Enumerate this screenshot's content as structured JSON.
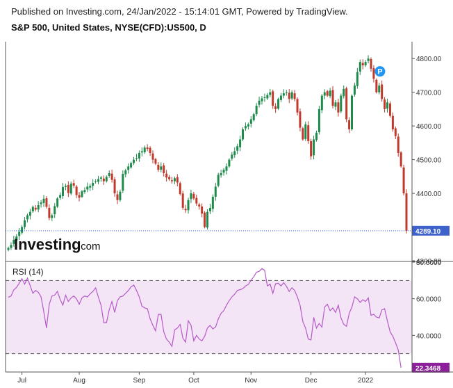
{
  "header": {
    "published": "Published on Investing.com, 24/Jan/2022 - 15:14:01 GMT, Powered by TradingView.",
    "symbol": "S&P 500, United States, NYSE(CFD):US500, D"
  },
  "logo": {
    "main": "Investing",
    "suffix": ".com"
  },
  "colors": {
    "up": "#26a69a",
    "up_fill": "#1e8a4c",
    "down": "#c0392b",
    "price_line": "#2962ff",
    "price_badge": "#3d62c9",
    "rsi_line": "#b659c9",
    "rsi_band": "#f3e5f5",
    "rsi_badge": "#8e1f9b",
    "marker": "#2196f3"
  },
  "chart_data": [
    {
      "type": "candlestick",
      "title": "S&P 500, United States, NYSE(CFD):US500, D",
      "ylim": [
        4200,
        4850
      ],
      "yticks": [
        "4800.00",
        "4700.00",
        "4600.00",
        "4500.00",
        "4400.00",
        "4200.00"
      ],
      "ytick_values": [
        4800,
        4700,
        4600,
        4500,
        4400,
        4200
      ],
      "xticks": [
        "Jul",
        "Aug",
        "Sep",
        "Oct",
        "Nov",
        "Dec",
        "2022"
      ],
      "xtick_indices": [
        5,
        26,
        48,
        68,
        89,
        111,
        131
      ],
      "current_price": "4289.10",
      "current_price_value": 4289.1,
      "marker_label": "P",
      "marker_index": 134,
      "closes": [
        4238,
        4247,
        4262,
        4272,
        4286,
        4300,
        4320,
        4335,
        4345,
        4360,
        4352,
        4365,
        4373,
        4384,
        4360,
        4327,
        4335,
        4362,
        4385,
        4395,
        4419,
        4422,
        4401,
        4429,
        4423,
        4395,
        4387,
        4406,
        4410,
        4420,
        4422,
        4431,
        4436,
        4442,
        4447,
        4436,
        4449,
        4460,
        4440,
        4400,
        4380,
        4405,
        4458,
        4468,
        4480,
        4490,
        4500,
        4505,
        4520,
        4525,
        4536,
        4532,
        4520,
        4500,
        4488,
        4470,
        4480,
        4460,
        4447,
        4442,
        4436,
        4445,
        4432,
        4398,
        4357,
        4350,
        4380,
        4400,
        4385,
        4370,
        4361,
        4340,
        4300,
        4345,
        4357,
        4390,
        4420,
        4455,
        4460,
        4470,
        4480,
        4500,
        4515,
        4525,
        4540,
        4560,
        4590,
        4600,
        4605,
        4620,
        4635,
        4660,
        4675,
        4682,
        4685,
        4692,
        4700,
        4660,
        4650,
        4680,
        4690,
        4697,
        4700,
        4680,
        4700,
        4680,
        4640,
        4595,
        4560,
        4605,
        4555,
        4510,
        4560,
        4580,
        4650,
        4690,
        4700,
        4690,
        4705,
        4660,
        4670,
        4640,
        4690,
        4710,
        4620,
        4590,
        4690,
        4720,
        4760,
        4790,
        4780,
        4790,
        4800,
        4770,
        4740,
        4700,
        4720,
        4680,
        4650,
        4670,
        4630,
        4590,
        4570,
        4520,
        4480,
        4400,
        4289.1
      ]
    },
    {
      "type": "line",
      "title": "RSI (14)",
      "ylim": [
        20,
        80
      ],
      "yticks": [
        "80.0000",
        "60.0000",
        "40.0000"
      ],
      "ytick_values": [
        80,
        60,
        40
      ],
      "bands": [
        30,
        70
      ],
      "current_value": "22.3468",
      "current_value_number": 22.3468,
      "values": [
        60.8,
        61.5,
        64.8,
        66.2,
        68.5,
        71.0,
        68.0,
        71.3,
        67.1,
        63.0,
        64.5,
        63.5,
        61.0,
        53.0,
        44.0,
        57.0,
        61.5,
        62.0,
        64.0,
        59.6,
        56.5,
        62.0,
        58.5,
        60.5,
        61.5,
        60.0,
        57.0,
        60.5,
        61.5,
        61.0,
        62.7,
        64.0,
        66.0,
        61.0,
        56.5,
        47.0,
        47.0,
        54.0,
        58.5,
        52.5,
        59.0,
        61.0,
        61.5,
        63.0,
        64.5,
        66.5,
        67.5,
        64.5,
        61.0,
        56.0,
        55.0,
        54.5,
        49.0,
        45.5,
        42.5,
        51.5,
        51.5,
        42.0,
        38.0,
        36.3,
        34.0,
        43.0,
        44.0,
        46.0,
        38.5,
        36.3,
        48.0,
        45.5,
        37.0,
        40.0,
        38.0,
        37.0,
        39.5,
        44.0,
        45.5,
        43.5,
        44.6,
        49.0,
        52.0,
        53.5,
        56.5,
        59.0,
        61.0,
        62.5,
        64.5,
        65.0,
        65.5,
        67.0,
        67.8,
        70.0,
        72.0,
        74.5,
        75.0,
        76.5,
        75.5,
        67.0,
        68.0,
        63.0,
        68.2,
        68.5,
        67.0,
        68.8,
        66.8,
        64.0,
        66.0,
        64.5,
        61.0,
        56.5,
        47.5,
        44.0,
        38.0,
        37.5,
        49.8,
        44.0,
        46.5,
        44.5,
        55.5,
        57.0,
        53.5,
        55.0,
        52.5,
        56.5,
        49.5,
        46.0,
        45.0,
        52.0,
        55.5,
        61.0,
        60.0,
        58.0,
        59.5,
        58.5,
        60.5,
        51.0,
        51.5,
        50.0,
        49.5,
        54.0,
        54.5,
        48.0,
        42.0,
        39.5,
        36.0,
        32.0,
        22.3468
      ]
    }
  ]
}
